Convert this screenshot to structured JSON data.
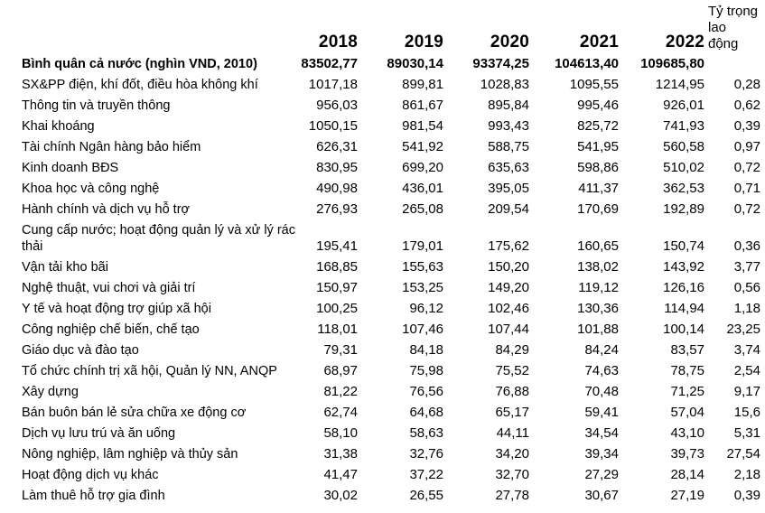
{
  "share_header_lines": [
    "Tỷ trọng",
    "lao",
    "động"
  ],
  "chart_data": {
    "type": "table",
    "title": "Bình quân cả nước (nghìn VND, 2010)",
    "columns": [
      "",
      "2018",
      "2019",
      "2020",
      "2021",
      "2022",
      "Tỷ trọng lao động"
    ],
    "rows": [
      [
        "Bình quân cả nước (nghìn VND, 2010)",
        "83502,77",
        "89030,14",
        "93374,25",
        "104613,40",
        "109685,80",
        ""
      ],
      [
        "SX&PP điện, khí đốt, điều hòa không khí",
        "1017,18",
        "899,81",
        "1028,83",
        "1095,55",
        "1214,95",
        "0,28"
      ],
      [
        "Thông tin và truyền thông",
        "956,03",
        "861,67",
        "895,84",
        "995,46",
        "926,01",
        "0,62"
      ],
      [
        "Khai khoáng",
        "1050,15",
        "981,54",
        "993,43",
        "825,72",
        "741,93",
        "0,39"
      ],
      [
        "Tài chính Ngân hàng bảo hiểm",
        "626,31",
        "541,92",
        "588,75",
        "541,95",
        "560,58",
        "0,97"
      ],
      [
        "Kinh doanh BĐS",
        "830,95",
        "699,20",
        "635,63",
        "598,86",
        "510,02",
        "0,72"
      ],
      [
        "Khoa học và công nghệ",
        "490,98",
        "436,01",
        "395,05",
        "411,37",
        "362,53",
        "0,71"
      ],
      [
        "Hành chính và dịch vụ hỗ trợ",
        "276,93",
        "265,08",
        "209,54",
        "170,69",
        "192,89",
        "0,72"
      ],
      [
        "Cung cấp nước; hoạt động quản lý và xử lý rác thải",
        "195,41",
        "179,01",
        "175,62",
        "160,65",
        "150,74",
        "0,36"
      ],
      [
        "Vận tải kho bãi",
        "168,85",
        "155,63",
        "150,20",
        "138,02",
        "143,92",
        "3,77"
      ],
      [
        "Nghệ thuật, vui chơi và giải trí",
        "150,97",
        "153,25",
        "149,20",
        "119,12",
        "126,16",
        "0,56"
      ],
      [
        "Y tế và hoạt động trợ giúp xã hội",
        "100,25",
        "96,12",
        "102,46",
        "130,36",
        "114,94",
        "1,18"
      ],
      [
        "Công nghiệp chế biến, chế tạo",
        "118,01",
        "107,46",
        "107,44",
        "101,88",
        "100,14",
        "23,25"
      ],
      [
        "Giáo dục và đào tạo",
        "79,31",
        "84,18",
        "84,29",
        "84,24",
        "83,57",
        "3,74"
      ],
      [
        "Tổ chức chính trị xã hội, Quản lý NN, ANQP",
        "68,97",
        "75,98",
        "75,52",
        "74,63",
        "78,75",
        "2,54"
      ],
      [
        "Xây dựng",
        "81,22",
        "76,56",
        "76,88",
        "70,48",
        "71,25",
        "9,17"
      ],
      [
        "Bán buôn bán lẻ sửa chữa xe động cơ",
        "62,74",
        "64,68",
        "65,17",
        "59,41",
        "57,04",
        "15,6"
      ],
      [
        "Dịch vụ lưu trú và ăn uống",
        "58,10",
        "58,63",
        "44,11",
        "34,54",
        "43,10",
        "5,31"
      ],
      [
        "Nông nghiệp, lâm nghiệp và thủy sản",
        "31,38",
        "32,76",
        "34,20",
        "39,34",
        "39,73",
        "27,54"
      ],
      [
        "Hoạt động dịch vụ khác",
        "41,47",
        "37,22",
        "32,70",
        "27,29",
        "28,14",
        "2,18"
      ],
      [
        "Làm thuê hỗ trợ gia đình",
        "30,02",
        "26,55",
        "27,78",
        "30,67",
        "27,19",
        "0,39"
      ]
    ]
  }
}
